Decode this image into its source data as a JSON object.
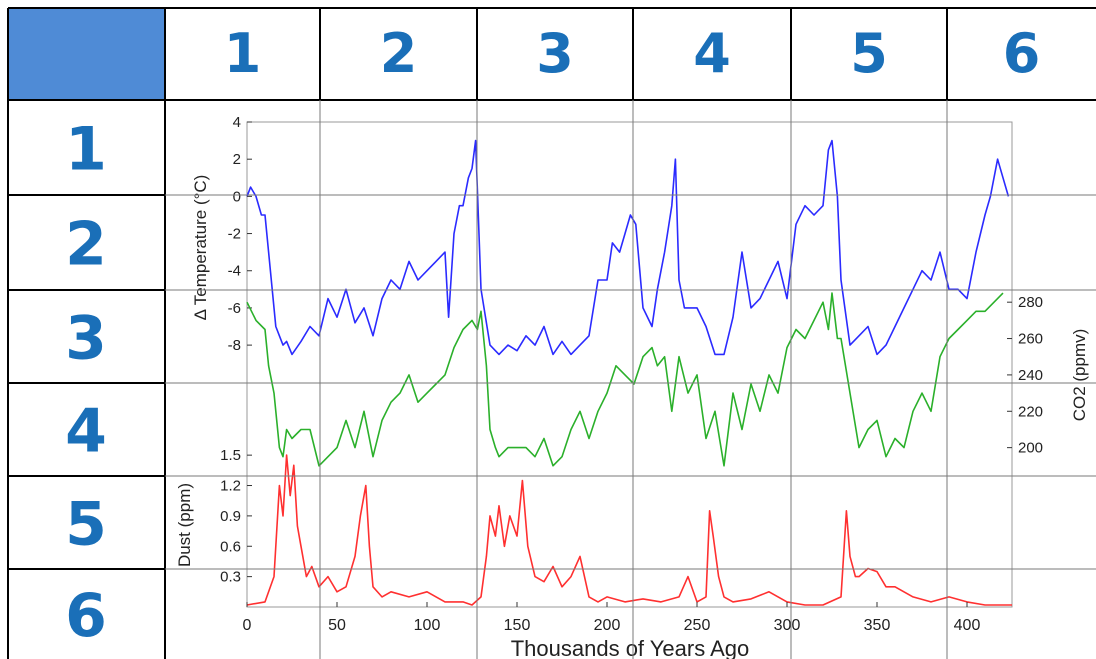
{
  "grid": {
    "corner_color": "#4f8bd6",
    "label_color": "#1a6fb8",
    "column_labels": [
      "1",
      "2",
      "3",
      "4",
      "5",
      "6"
    ],
    "row_labels": [
      "1",
      "2",
      "3",
      "4",
      "5",
      "6"
    ]
  },
  "chart_data": {
    "type": "line",
    "x_axis": {
      "label": "Thousands of Years Ago",
      "range": [
        0,
        425
      ],
      "ticks": [
        "0",
        "50",
        "100",
        "150",
        "200",
        "250",
        "300",
        "350",
        "400"
      ]
    },
    "panels": [
      {
        "name": "temperature",
        "ylabel": "Δ Temperature (°C)",
        "axis_side": "left",
        "range": [
          -9.5,
          4
        ],
        "ticks": [
          "4",
          "2",
          "0",
          "-2",
          "-4",
          "-6",
          "-8"
        ],
        "color": "#2b2bff",
        "series": {
          "x": [
            0,
            2,
            5,
            8,
            10,
            12,
            14,
            16,
            18,
            20,
            22,
            25,
            30,
            35,
            40,
            45,
            50,
            55,
            60,
            65,
            70,
            75,
            80,
            85,
            90,
            95,
            100,
            105,
            110,
            112,
            115,
            118,
            120,
            123,
            125,
            127,
            130,
            135,
            140,
            145,
            150,
            155,
            160,
            165,
            170,
            175,
            180,
            185,
            190,
            195,
            200,
            203,
            207,
            210,
            213,
            216,
            220,
            225,
            228,
            232,
            236,
            238,
            240,
            243,
            245,
            250,
            255,
            260,
            265,
            270,
            275,
            280,
            285,
            290,
            295,
            300,
            305,
            310,
            315,
            320,
            323,
            325,
            328,
            330,
            335,
            340,
            345,
            350,
            355,
            360,
            365,
            370,
            375,
            380,
            385,
            390,
            395,
            400,
            405,
            410,
            413,
            417,
            420,
            423
          ],
          "y": [
            0,
            0.5,
            0,
            -1,
            -1,
            -3,
            -5,
            -7,
            -7.5,
            -8,
            -7.8,
            -8.5,
            -7.8,
            -7,
            -7.5,
            -5.5,
            -6.5,
            -5,
            -6.8,
            -6,
            -7.5,
            -5.5,
            -4.5,
            -5,
            -3.5,
            -4.5,
            -4,
            -3.5,
            -3,
            -6.5,
            -2,
            -0.5,
            -0.5,
            1,
            1.5,
            3,
            -5,
            -8,
            -8.5,
            -8,
            -8.3,
            -7.5,
            -8,
            -7,
            -8.5,
            -7.8,
            -8.5,
            -8,
            -7.5,
            -4.5,
            -4.5,
            -2.5,
            -3,
            -2,
            -1,
            -1.5,
            -6,
            -7,
            -5,
            -3,
            -0.5,
            2,
            -4.5,
            -6,
            -6,
            -6,
            -7,
            -8.5,
            -8.5,
            -6.5,
            -3,
            -6,
            -5.5,
            -4.5,
            -3.5,
            -5.5,
            -1.5,
            -0.5,
            -1,
            -0.5,
            2.5,
            3,
            0,
            -4.5,
            -8,
            -7.5,
            -7,
            -8.5,
            -8,
            -7,
            -6,
            -5,
            -4,
            -4.5,
            -3,
            -5,
            -5,
            -5.5,
            -3,
            -1,
            0,
            2,
            1,
            0
          ]
        }
      },
      {
        "name": "co2",
        "ylabel": "CO2 (ppmv)",
        "axis_side": "right",
        "range": [
          180,
          290
        ],
        "ticks": [
          "280",
          "260",
          "240",
          "220",
          "200"
        ],
        "color": "#2bb02b",
        "series": {
          "x": [
            0,
            5,
            10,
            12,
            15,
            18,
            20,
            22,
            25,
            30,
            35,
            40,
            45,
            50,
            55,
            60,
            65,
            70,
            75,
            80,
            85,
            90,
            95,
            100,
            105,
            110,
            115,
            120,
            125,
            128,
            130,
            133,
            135,
            138,
            140,
            145,
            150,
            155,
            160,
            165,
            170,
            175,
            180,
            185,
            190,
            195,
            200,
            205,
            210,
            215,
            220,
            225,
            228,
            232,
            236,
            240,
            245,
            250,
            255,
            260,
            265,
            270,
            275,
            280,
            285,
            290,
            295,
            300,
            305,
            310,
            315,
            320,
            323,
            325,
            328,
            330,
            335,
            340,
            345,
            350,
            355,
            360,
            365,
            370,
            375,
            380,
            385,
            390,
            395,
            400,
            405,
            410,
            415,
            420
          ],
          "y": [
            280,
            270,
            265,
            245,
            230,
            200,
            195,
            210,
            205,
            210,
            210,
            190,
            195,
            200,
            215,
            200,
            220,
            195,
            215,
            225,
            230,
            240,
            225,
            230,
            235,
            240,
            255,
            265,
            270,
            265,
            275,
            245,
            210,
            200,
            195,
            200,
            200,
            200,
            195,
            205,
            190,
            195,
            210,
            220,
            205,
            220,
            230,
            245,
            240,
            235,
            250,
            255,
            245,
            250,
            220,
            250,
            230,
            240,
            205,
            220,
            190,
            230,
            210,
            235,
            220,
            240,
            230,
            255,
            265,
            260,
            270,
            280,
            265,
            285,
            260,
            260,
            230,
            200,
            210,
            215,
            195,
            205,
            200,
            220,
            230,
            220,
            250,
            260,
            265,
            270,
            275,
            275,
            280,
            285
          ]
        }
      },
      {
        "name": "dust",
        "ylabel": "Dust (ppm)",
        "axis_side": "left",
        "range": [
          0,
          1.62
        ],
        "ticks": [
          "1.5",
          "1.2",
          "0.9",
          "0.6",
          "0.3"
        ],
        "color": "#ff3030",
        "series": {
          "x": [
            0,
            10,
            15,
            18,
            20,
            22,
            24,
            26,
            28,
            30,
            33,
            36,
            40,
            45,
            50,
            55,
            60,
            63,
            66,
            68,
            70,
            75,
            80,
            90,
            100,
            110,
            120,
            125,
            130,
            133,
            135,
            138,
            140,
            143,
            146,
            150,
            153,
            156,
            160,
            165,
            170,
            175,
            180,
            185,
            190,
            195,
            200,
            210,
            220,
            230,
            240,
            245,
            250,
            255,
            257,
            259,
            262,
            265,
            270,
            280,
            290,
            300,
            310,
            320,
            330,
            333,
            335,
            338,
            340,
            345,
            350,
            355,
            360,
            370,
            380,
            390,
            400,
            410,
            420,
            425
          ],
          "y": [
            0.02,
            0.05,
            0.3,
            1.2,
            0.9,
            1.5,
            1.1,
            1.4,
            0.8,
            0.6,
            0.3,
            0.4,
            0.2,
            0.3,
            0.15,
            0.2,
            0.5,
            0.9,
            1.2,
            0.6,
            0.2,
            0.1,
            0.15,
            0.1,
            0.15,
            0.05,
            0.05,
            0.02,
            0.1,
            0.5,
            0.9,
            0.7,
            1.0,
            0.6,
            0.9,
            0.7,
            1.25,
            0.6,
            0.3,
            0.25,
            0.4,
            0.2,
            0.3,
            0.5,
            0.1,
            0.05,
            0.1,
            0.05,
            0.08,
            0.05,
            0.1,
            0.3,
            0.05,
            0.1,
            0.95,
            0.7,
            0.3,
            0.1,
            0.05,
            0.08,
            0.15,
            0.05,
            0.02,
            0.02,
            0.1,
            0.95,
            0.5,
            0.3,
            0.3,
            0.38,
            0.35,
            0.2,
            0.2,
            0.1,
            0.05,
            0.1,
            0.05,
            0.02,
            0.02,
            0.02
          ]
        }
      }
    ]
  }
}
